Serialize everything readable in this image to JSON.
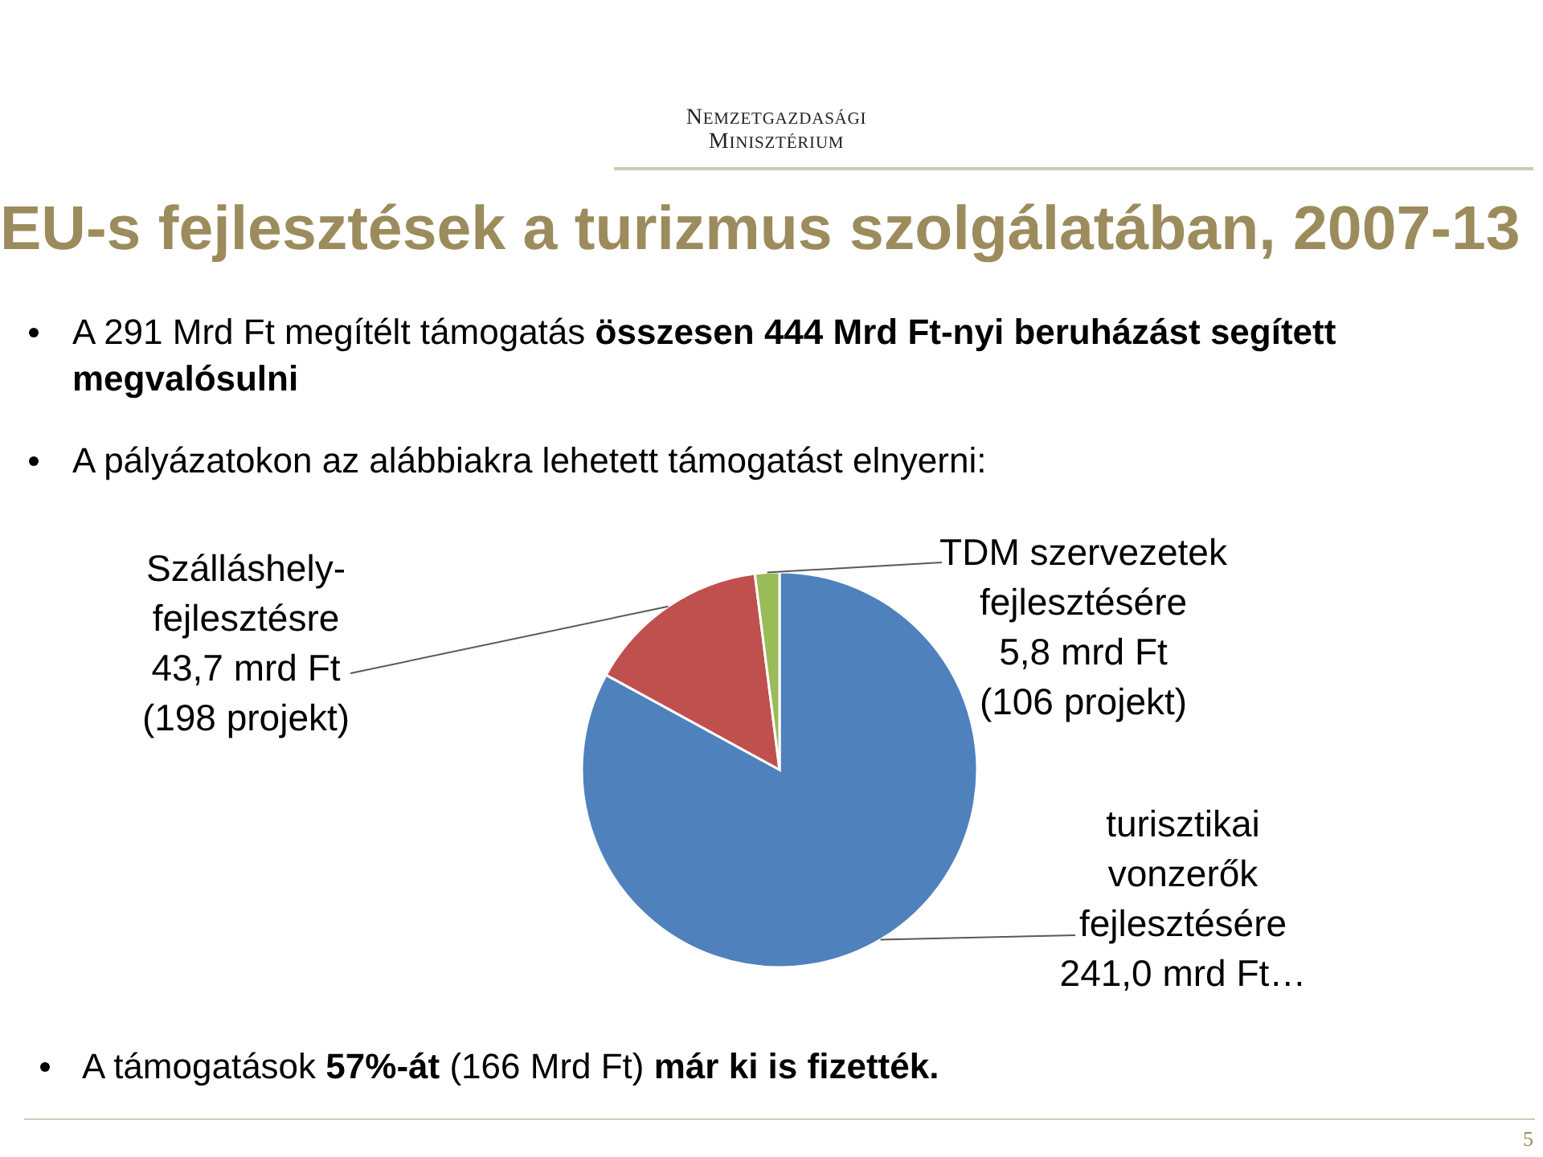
{
  "chart_data": {
    "type": "pie",
    "title": "EU-s fejlesztések a turizmus szolgálatában, 2007-13",
    "categories": [
      "turisztikai\nvonzerők\nfejlesztésére",
      "Szálláshely-\nfejlesztésre",
      "TDM szervezetek\nfejlesztésére"
    ],
    "values": [
      241.0,
      43.7,
      5.8
    ],
    "colors": [
      "#4f81bd",
      "#c0504d",
      "#9bbb59"
    ],
    "value_labels": [
      "241,0 mrd Ft…",
      "43,7 mrd Ft\n(198 projekt)",
      "5,8 mrd Ft\n(106 projekt)"
    ],
    "annotations": [
      "NEMZETGAZDASÁGI",
      "MINISZTÉRIUM",
      "A 291 Mrd Ft megítélt támogatás",
      "összesen 444 Mrd Ft-nyi beruházást segített",
      "megvalósulni",
      "A pályázatokon az alábbiakra lehetett támogatást elnyerni:",
      "A támogatások",
      "57%-át",
      "(166 Mrd Ft)",
      "már ki is fizették.",
      "5"
    ]
  }
}
